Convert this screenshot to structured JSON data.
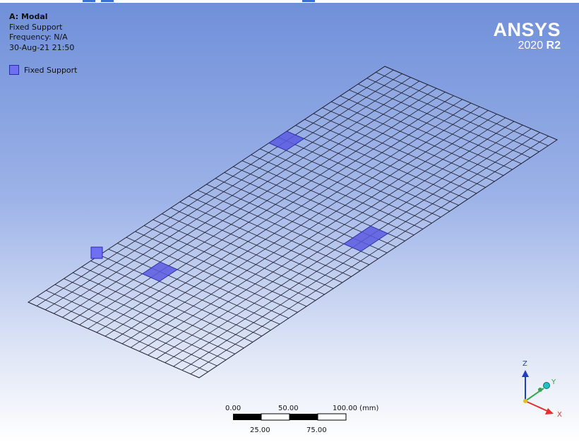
{
  "header": {
    "title": "A: Modal",
    "subtitle": "Fixed Support",
    "frequency": "Frequency: N/A",
    "timestamp": "30-Aug-21 21:50"
  },
  "legend": {
    "label": "Fixed Support",
    "color": "#6f6ff2"
  },
  "brand": {
    "name": "ANSYS",
    "year": "2020",
    "release": "R2"
  },
  "scale_bar": {
    "top_labels": [
      "0.00",
      "50.00",
      "100.00 (mm)"
    ],
    "bottom_labels": [
      "25.00",
      "75.00"
    ]
  },
  "triad": {
    "x_label": "X",
    "y_label": "Y",
    "z_label": "Z",
    "x_color": "#e03030",
    "y_color": "#2fa84f",
    "z_color": "#1f3fbf"
  },
  "colors": {
    "mesh_line": "#1b1b2e",
    "support_fill": "#5a5ae0"
  }
}
